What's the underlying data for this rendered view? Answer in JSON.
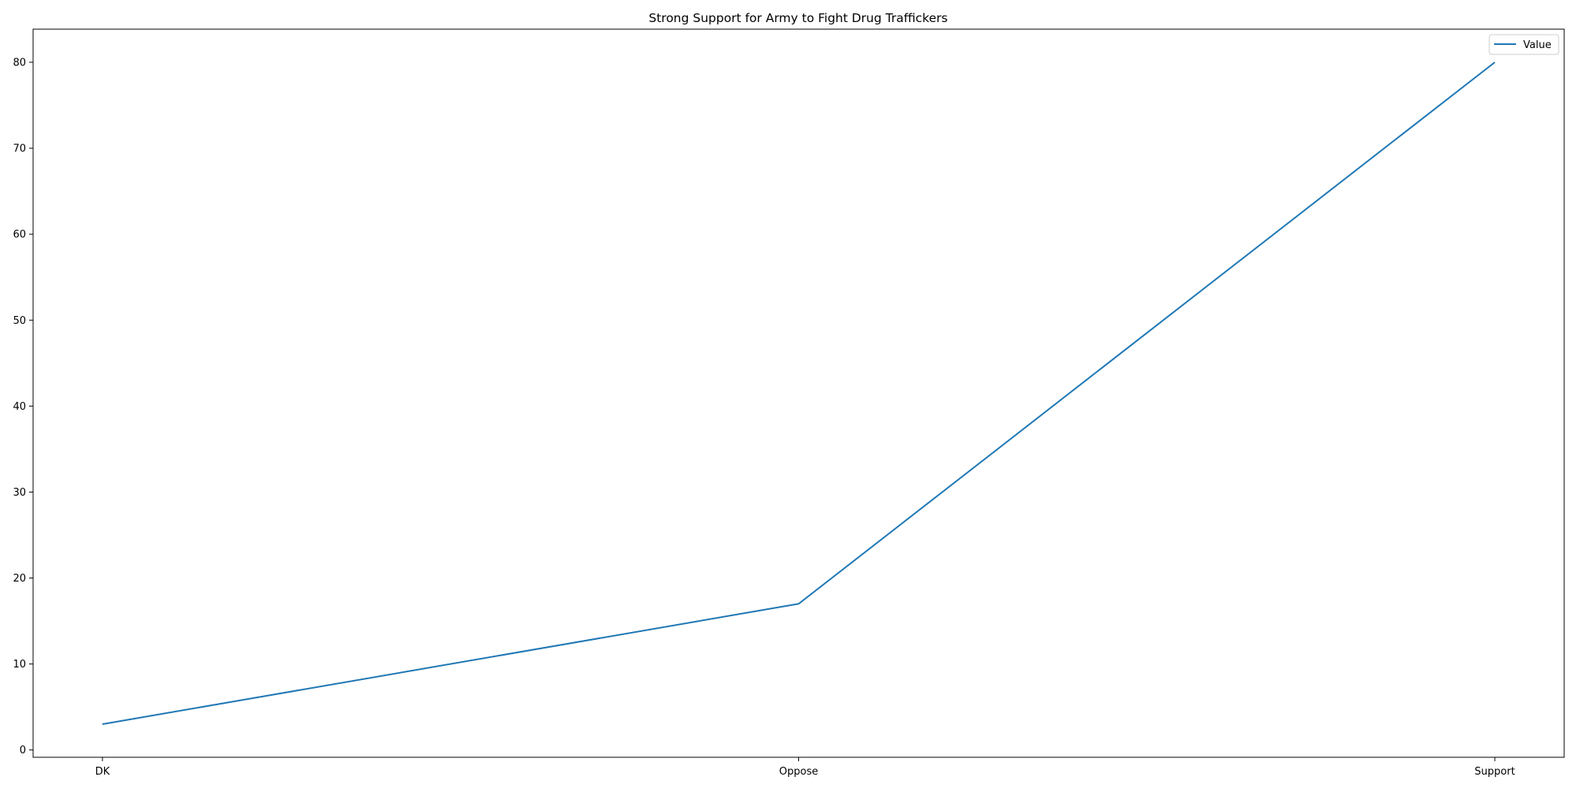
{
  "chart_data": {
    "type": "line",
    "title": "Strong Support for Army to Fight Drug Traffickers",
    "xlabel": "",
    "ylabel": "",
    "categories": [
      "DK",
      "Oppose",
      "Support"
    ],
    "series": [
      {
        "name": "Value",
        "values": [
          3,
          17,
          80
        ],
        "color": "#1f77b4"
      }
    ],
    "ylim": [
      -0.85,
      83.85
    ],
    "yticks": [
      0,
      10,
      20,
      30,
      40,
      50,
      60,
      70,
      80
    ],
    "grid": false,
    "legend": "top-right"
  }
}
